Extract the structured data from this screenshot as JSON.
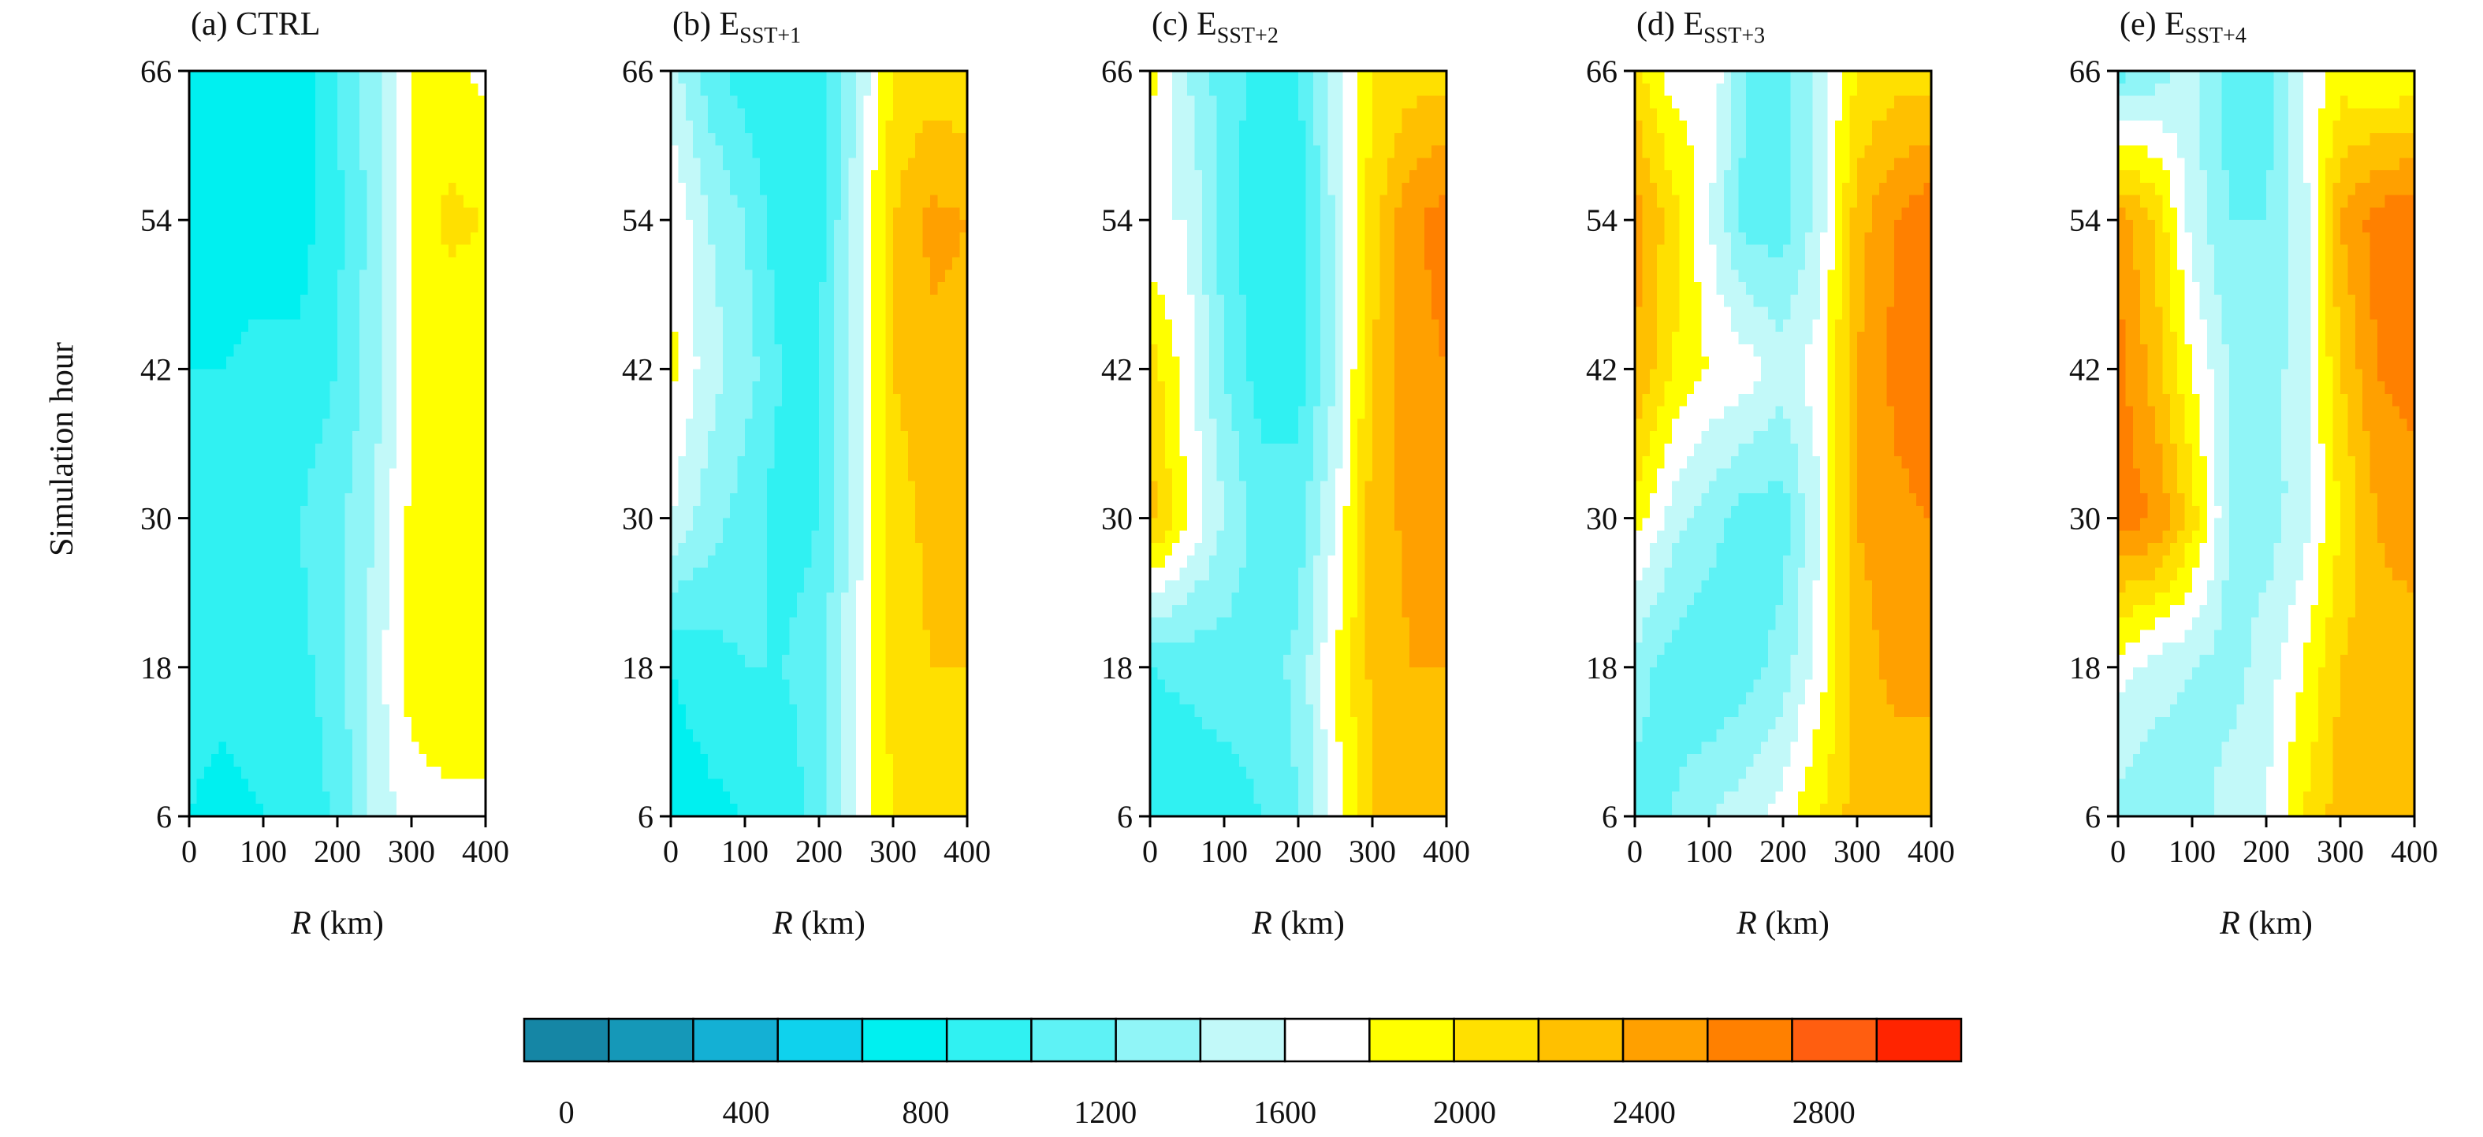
{
  "chart_data": {
    "type": "heatmap",
    "shared_ylabel": "Simulation hour",
    "panels": [
      {
        "id": "a",
        "label": "(a) CTRL",
        "label_main": "(a) CTRL",
        "label_sub": "",
        "xlabel_italic": "R",
        "xlabel_unit": " (km)",
        "x_ticks": [
          "0",
          "100",
          "200",
          "300",
          "400"
        ],
        "y_ticks": [
          "6",
          "18",
          "30",
          "42",
          "54",
          "66"
        ],
        "xlim": [
          0,
          400
        ],
        "ylim": [
          6,
          66
        ],
        "grid": false,
        "x": [
          0,
          50,
          100,
          150,
          200,
          250,
          300,
          350,
          400
        ],
        "y": [
          6,
          18,
          30,
          42,
          54,
          66
        ],
        "z": [
          [
            1000,
            950,
            1000,
            1050,
            1250,
            1650,
            1900,
            1950,
            1950
          ],
          [
            1050,
            1050,
            1100,
            1150,
            1300,
            1700,
            2100,
            2150,
            2150
          ],
          [
            1100,
            1100,
            1150,
            1200,
            1350,
            1600,
            2050,
            2150,
            2100
          ],
          [
            1000,
            1000,
            1050,
            1050,
            1200,
            1500,
            2000,
            2050,
            2000
          ],
          [
            950,
            950,
            900,
            900,
            1150,
            1500,
            2050,
            2250,
            2200
          ],
          [
            850,
            850,
            850,
            900,
            1200,
            1500,
            2000,
            2050,
            1950
          ]
        ]
      },
      {
        "id": "b",
        "label": "(b) ESST+1",
        "label_main": "(b) E",
        "label_sub": "SST+1",
        "xlabel_italic": "R",
        "xlabel_unit": " (km)",
        "x_ticks": [
          "0",
          "100",
          "200",
          "300",
          "400"
        ],
        "y_ticks": [
          "6",
          "18",
          "30",
          "42",
          "54",
          "66"
        ],
        "xlim": [
          0,
          400
        ],
        "ylim": [
          6,
          66
        ],
        "grid": false,
        "x": [
          0,
          50,
          100,
          150,
          200,
          250,
          300,
          350,
          400
        ],
        "y": [
          6,
          18,
          30,
          42,
          54,
          66
        ],
        "z": [
          [
            900,
            950,
            1000,
            1050,
            1300,
            1800,
            2200,
            2300,
            2350
          ],
          [
            1000,
            1100,
            1200,
            1200,
            1300,
            1800,
            2300,
            2400,
            2400
          ],
          [
            1800,
            1500,
            1300,
            1100,
            1200,
            1700,
            2300,
            2450,
            2500
          ],
          [
            2050,
            1700,
            1500,
            1200,
            1200,
            1700,
            2400,
            2550,
            2550
          ],
          [
            2000,
            1600,
            1400,
            1050,
            1100,
            1700,
            2400,
            2650,
            2600
          ],
          [
            1700,
            1300,
            1100,
            1000,
            1100,
            1600,
            2200,
            2300,
            2250
          ]
        ]
      },
      {
        "id": "c",
        "label": "(c) ESST+2",
        "label_main": "(c) E",
        "label_sub": "SST+2",
        "xlabel_italic": "R",
        "xlabel_unit": " (km)",
        "x_ticks": [
          "0",
          "100",
          "200",
          "300",
          "400"
        ],
        "y_ticks": [
          "6",
          "18",
          "30",
          "42",
          "54",
          "66"
        ],
        "xlim": [
          0,
          400
        ],
        "ylim": [
          6,
          66
        ],
        "grid": false,
        "x": [
          0,
          50,
          100,
          150,
          200,
          250,
          300,
          350,
          400
        ],
        "y": [
          6,
          18,
          30,
          42,
          54,
          66
        ],
        "z": [
          [
            1000,
            1050,
            1100,
            1200,
            1400,
            1900,
            2400,
            2500,
            2500
          ],
          [
            1200,
            1250,
            1300,
            1300,
            1450,
            2000,
            2450,
            2600,
            2600
          ],
          [
            2500,
            2000,
            1600,
            1300,
            1300,
            1800,
            2500,
            2650,
            2700
          ],
          [
            2300,
            1900,
            1400,
            1100,
            1100,
            1600,
            2400,
            2700,
            2800
          ],
          [
            1800,
            1800,
            1300,
            1000,
            1050,
            1650,
            2300,
            2750,
            2900
          ],
          [
            2100,
            1600,
            1300,
            1150,
            1200,
            1700,
            2200,
            2300,
            2300
          ]
        ]
      },
      {
        "id": "d",
        "label": "(d) ESST+3",
        "label_main": "(d) E",
        "label_sub": "SST+3",
        "xlabel_italic": "R",
        "xlabel_unit": " (km)",
        "x_ticks": [
          "0",
          "100",
          "200",
          "300",
          "400"
        ],
        "y_ticks": [
          "6",
          "18",
          "30",
          "42",
          "54",
          "66"
        ],
        "xlim": [
          0,
          400
        ],
        "ylim": [
          6,
          66
        ],
        "grid": false,
        "x": [
          0,
          50,
          100,
          150,
          200,
          250,
          300,
          350,
          400
        ],
        "y": [
          6,
          18,
          30,
          42,
          54,
          66
        ],
        "z": [
          [
            1300,
            1400,
            1600,
            1700,
            1900,
            2200,
            2500,
            2500,
            2500
          ],
          [
            1500,
            1300,
            1200,
            1300,
            1500,
            1900,
            2500,
            2650,
            2650
          ],
          [
            2100,
            1700,
            1500,
            1300,
            1300,
            1800,
            2600,
            2750,
            2800
          ],
          [
            2600,
            2200,
            2000,
            1900,
            1700,
            1900,
            2600,
            2850,
            2950
          ],
          [
            2700,
            2300,
            1800,
            1300,
            1300,
            1700,
            2500,
            2800,
            2950
          ],
          [
            2300,
            1900,
            2000,
            1400,
            1300,
            1700,
            2200,
            2300,
            2300
          ]
        ]
      },
      {
        "id": "e",
        "label": "(e) ESST+4",
        "label_main": "(e) E",
        "label_sub": "SST+4",
        "xlabel_italic": "R",
        "xlabel_unit": " (km)",
        "x_ticks": [
          "0",
          "100",
          "200",
          "300",
          "400"
        ],
        "y_ticks": [
          "6",
          "18",
          "30",
          "42",
          "54",
          "66"
        ],
        "xlim": [
          0,
          400
        ],
        "ylim": [
          6,
          66
        ],
        "grid": false,
        "x": [
          0,
          50,
          100,
          150,
          200,
          250,
          300,
          350,
          400
        ],
        "y": [
          6,
          18,
          30,
          42,
          54,
          66
        ],
        "z": [
          [
            1500,
            1400,
            1500,
            1700,
            1800,
            2200,
            2500,
            2600,
            2500
          ],
          [
            1900,
            1700,
            1600,
            1500,
            1700,
            2000,
            2400,
            2550,
            2500
          ],
          [
            2900,
            2800,
            2300,
            1600,
            1500,
            1700,
            2200,
            2600,
            2700
          ],
          [
            2900,
            2500,
            2000,
            1600,
            1500,
            1700,
            2400,
            2800,
            2900
          ],
          [
            2700,
            2400,
            1700,
            1400,
            1400,
            1700,
            2600,
            2900,
            3000
          ],
          [
            1300,
            1500,
            1700,
            1300,
            1300,
            1800,
            2100,
            2000,
            2000
          ]
        ]
      }
    ],
    "colorbar": {
      "levels": [
        0,
        200,
        400,
        600,
        800,
        1000,
        1200,
        1400,
        1600,
        1800,
        2000,
        2200,
        2400,
        2600,
        2800,
        3000,
        3200
      ],
      "colors": [
        "#1586a5",
        "#1598b8",
        "#14b0d4",
        "#0fd2ed",
        "#00f0f0",
        "#30f1f2",
        "#5ef2f5",
        "#90f5f7",
        "#c2f9f9",
        "#ffffff",
        "#ffff00",
        "#ffe000",
        "#ffc000",
        "#ffa000",
        "#ff8000",
        "#ff5e10",
        "#ff2400"
      ],
      "tick_labels": [
        "0",
        "400",
        "800",
        "1200",
        "1600",
        "2000",
        "2400",
        "2800"
      ],
      "tick_values": [
        0,
        400,
        800,
        1200,
        1600,
        2000,
        2400,
        2800
      ]
    }
  }
}
